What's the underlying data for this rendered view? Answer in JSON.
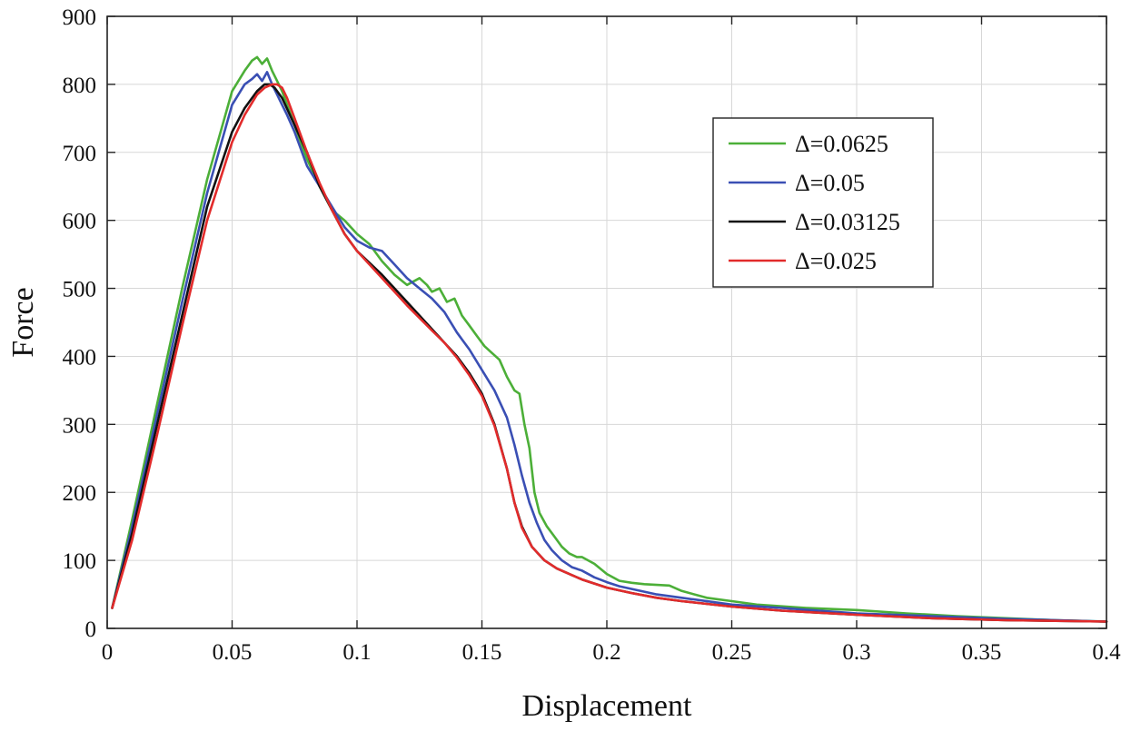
{
  "chart_data": {
    "type": "line",
    "title": "",
    "xlabel": "Displacement",
    "ylabel": "Force",
    "xlim": [
      0,
      0.4
    ],
    "ylim": [
      0,
      900
    ],
    "xticks": [
      0,
      0.05,
      0.1,
      0.15,
      0.2,
      0.25,
      0.3,
      0.35,
      0.4
    ],
    "xtick_labels": [
      "0",
      "0.05",
      "0.1",
      "0.15",
      "0.2",
      "0.25",
      "0.3",
      "0.35",
      "0.4"
    ],
    "yticks": [
      0,
      100,
      200,
      300,
      400,
      500,
      600,
      700,
      800,
      900
    ],
    "ytick_labels": [
      "0",
      "100",
      "200",
      "300",
      "400",
      "500",
      "600",
      "700",
      "800",
      "900"
    ],
    "grid": true,
    "legend_position": "upper-right",
    "series": [
      {
        "name": "Δ=0.0625",
        "color": "#4caf38",
        "x": [
          0.002,
          0.01,
          0.02,
          0.03,
          0.04,
          0.05,
          0.055,
          0.058,
          0.06,
          0.062,
          0.064,
          0.066,
          0.068,
          0.07,
          0.072,
          0.075,
          0.08,
          0.085,
          0.09,
          0.095,
          0.1,
          0.105,
          0.11,
          0.115,
          0.12,
          0.125,
          0.128,
          0.13,
          0.133,
          0.136,
          0.139,
          0.142,
          0.145,
          0.148,
          0.151,
          0.154,
          0.157,
          0.16,
          0.163,
          0.165,
          0.167,
          0.169,
          0.171,
          0.173,
          0.176,
          0.179,
          0.182,
          0.185,
          0.188,
          0.19,
          0.195,
          0.2,
          0.205,
          0.21,
          0.215,
          0.22,
          0.225,
          0.23,
          0.24,
          0.25,
          0.26,
          0.28,
          0.3,
          0.32,
          0.34,
          0.36,
          0.38,
          0.4
        ],
        "y": [
          30,
          160,
          330,
          500,
          660,
          790,
          820,
          835,
          840,
          830,
          838,
          820,
          805,
          790,
          770,
          740,
          690,
          650,
          615,
          600,
          580,
          565,
          540,
          520,
          505,
          515,
          505,
          495,
          500,
          480,
          485,
          460,
          445,
          430,
          415,
          405,
          395,
          370,
          350,
          345,
          300,
          265,
          200,
          170,
          150,
          135,
          120,
          110,
          105,
          105,
          95,
          80,
          70,
          67,
          65,
          64,
          63,
          55,
          45,
          40,
          35,
          30,
          27,
          22,
          18,
          15,
          12,
          10
        ]
      },
      {
        "name": "Δ=0.05",
        "color": "#3a4fb4",
        "x": [
          0.002,
          0.01,
          0.02,
          0.03,
          0.04,
          0.05,
          0.055,
          0.058,
          0.06,
          0.062,
          0.064,
          0.066,
          0.068,
          0.07,
          0.072,
          0.075,
          0.08,
          0.085,
          0.09,
          0.095,
          0.1,
          0.105,
          0.11,
          0.115,
          0.12,
          0.125,
          0.13,
          0.135,
          0.14,
          0.145,
          0.15,
          0.155,
          0.16,
          0.163,
          0.166,
          0.169,
          0.172,
          0.175,
          0.178,
          0.182,
          0.186,
          0.19,
          0.195,
          0.2,
          0.205,
          0.21,
          0.22,
          0.23,
          0.25,
          0.27,
          0.3,
          0.33,
          0.36,
          0.4
        ],
        "y": [
          30,
          150,
          315,
          480,
          640,
          770,
          800,
          808,
          815,
          805,
          818,
          800,
          785,
          770,
          755,
          730,
          680,
          650,
          620,
          590,
          570,
          560,
          555,
          535,
          515,
          500,
          485,
          465,
          435,
          410,
          380,
          350,
          310,
          270,
          225,
          185,
          155,
          130,
          115,
          100,
          90,
          85,
          75,
          68,
          62,
          58,
          50,
          45,
          35,
          30,
          22,
          18,
          14,
          10
        ]
      },
      {
        "name": "Δ=0.03125",
        "color": "#111111",
        "x": [
          0.002,
          0.01,
          0.02,
          0.03,
          0.04,
          0.05,
          0.055,
          0.06,
          0.063,
          0.065,
          0.067,
          0.07,
          0.075,
          0.08,
          0.085,
          0.09,
          0.095,
          0.1,
          0.11,
          0.12,
          0.13,
          0.135,
          0.14,
          0.145,
          0.15,
          0.155,
          0.16,
          0.163,
          0.166,
          0.17,
          0.175,
          0.18,
          0.19,
          0.2,
          0.21,
          0.22,
          0.23,
          0.25,
          0.27,
          0.3,
          0.33,
          0.36,
          0.4
        ],
        "y": [
          30,
          140,
          300,
          460,
          620,
          730,
          765,
          790,
          800,
          800,
          795,
          780,
          740,
          700,
          650,
          615,
          580,
          555,
          520,
          480,
          440,
          420,
          400,
          375,
          345,
          300,
          235,
          185,
          150,
          120,
          100,
          88,
          72,
          60,
          52,
          45,
          40,
          32,
          26,
          20,
          15,
          12,
          10
        ]
      },
      {
        "name": "Δ=0.025",
        "color": "#e22b2b",
        "x": [
          0.002,
          0.01,
          0.02,
          0.03,
          0.04,
          0.05,
          0.055,
          0.06,
          0.063,
          0.066,
          0.068,
          0.07,
          0.072,
          0.075,
          0.08,
          0.085,
          0.09,
          0.095,
          0.1,
          0.11,
          0.12,
          0.13,
          0.135,
          0.14,
          0.145,
          0.15,
          0.155,
          0.16,
          0.163,
          0.166,
          0.17,
          0.175,
          0.18,
          0.19,
          0.2,
          0.21,
          0.22,
          0.23,
          0.25,
          0.27,
          0.3,
          0.33,
          0.36,
          0.4
        ],
        "y": [
          30,
          130,
          285,
          445,
          600,
          715,
          755,
          785,
          795,
          800,
          800,
          795,
          780,
          750,
          700,
          655,
          615,
          580,
          555,
          515,
          475,
          438,
          420,
          398,
          372,
          342,
          298,
          235,
          185,
          148,
          120,
          100,
          88,
          72,
          60,
          52,
          45,
          40,
          32,
          26,
          20,
          15,
          12,
          10
        ]
      }
    ]
  }
}
